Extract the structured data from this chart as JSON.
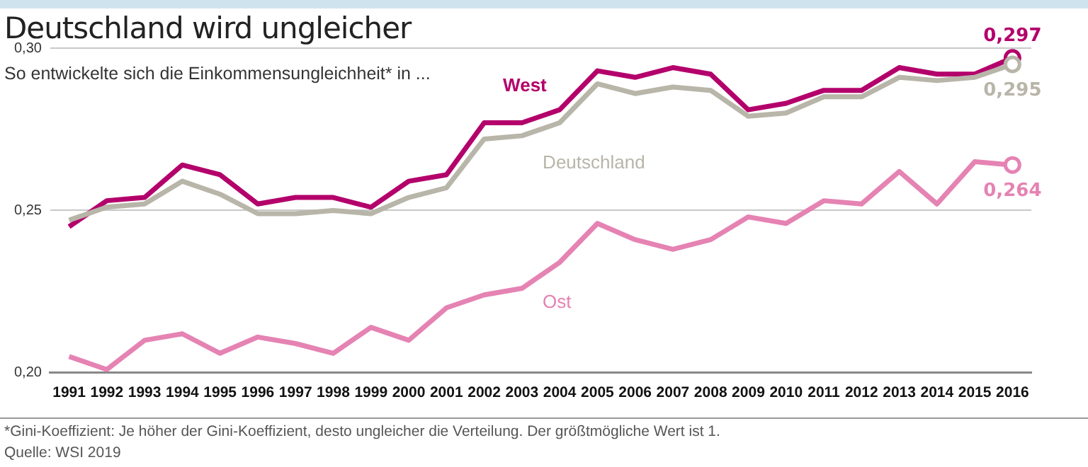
{
  "chart_data": {
    "type": "line",
    "title": "Deutschland wird ungleicher",
    "subtitle": "So entwickelte sich die Einkommensungleichheit* in ...",
    "categories": [
      "1991",
      "1992",
      "1993",
      "1994",
      "1995",
      "1996",
      "1997",
      "1998",
      "1999",
      "2000",
      "2001",
      "2002",
      "2003",
      "2004",
      "2005",
      "2006",
      "2007",
      "2008",
      "2009",
      "2010",
      "2011",
      "2012",
      "2013",
      "2014",
      "2015",
      "2016"
    ],
    "series": [
      {
        "name": "West",
        "color": "#b3006b",
        "values": [
          0.245,
          0.253,
          0.254,
          0.264,
          0.261,
          0.252,
          0.254,
          0.254,
          0.251,
          0.259,
          0.261,
          0.277,
          0.277,
          0.281,
          0.293,
          0.291,
          0.294,
          0.292,
          0.281,
          0.283,
          0.287,
          0.287,
          0.294,
          0.292,
          0.292,
          0.297
        ],
        "value_labels": [
          null,
          null,
          null,
          null,
          null,
          null,
          null,
          null,
          null,
          null,
          null,
          null,
          null,
          null,
          null,
          null,
          null,
          null,
          null,
          null,
          null,
          null,
          null,
          null,
          null,
          "0,297"
        ]
      },
      {
        "name": "Deutschland",
        "color": "#b8b5a9",
        "values": [
          0.247,
          0.251,
          0.252,
          0.259,
          0.255,
          0.249,
          0.249,
          0.25,
          0.249,
          0.254,
          0.257,
          0.272,
          0.273,
          0.277,
          0.289,
          0.286,
          0.288,
          0.287,
          0.279,
          0.28,
          0.285,
          0.285,
          0.291,
          0.29,
          0.291,
          0.295
        ],
        "value_labels": [
          null,
          null,
          null,
          null,
          null,
          null,
          null,
          null,
          null,
          null,
          null,
          null,
          null,
          null,
          null,
          null,
          null,
          null,
          null,
          null,
          null,
          null,
          null,
          null,
          null,
          "0,295"
        ]
      },
      {
        "name": "Ost",
        "color": "#e583b3",
        "values": [
          0.205,
          0.201,
          0.21,
          0.212,
          0.206,
          0.211,
          0.209,
          0.206,
          0.214,
          0.21,
          0.22,
          0.224,
          0.226,
          0.234,
          0.246,
          0.241,
          0.238,
          0.241,
          0.248,
          0.246,
          0.253,
          0.252,
          0.262,
          0.252,
          0.265,
          0.264
        ],
        "value_labels": [
          null,
          null,
          null,
          null,
          null,
          null,
          null,
          null,
          null,
          null,
          null,
          null,
          null,
          null,
          null,
          null,
          null,
          null,
          null,
          null,
          null,
          null,
          null,
          null,
          null,
          "0,264"
        ]
      }
    ],
    "ylim": [
      0.2,
      0.3
    ],
    "yticks": [
      {
        "value": 0.2,
        "label": "0,20"
      },
      {
        "value": 0.25,
        "label": "0,25"
      },
      {
        "value": 0.3,
        "label": "0,30"
      }
    ],
    "grid": "y",
    "legend": false,
    "marker": "none",
    "line_style": "solid",
    "annotations": [
      "*Gini-Koeffizient: Je höher der Gini-Koeffizient, desto ungleicher die Verteilung. Der größtmögliche Wert ist 1.",
      "Quelle: WSI 2019"
    ]
  }
}
